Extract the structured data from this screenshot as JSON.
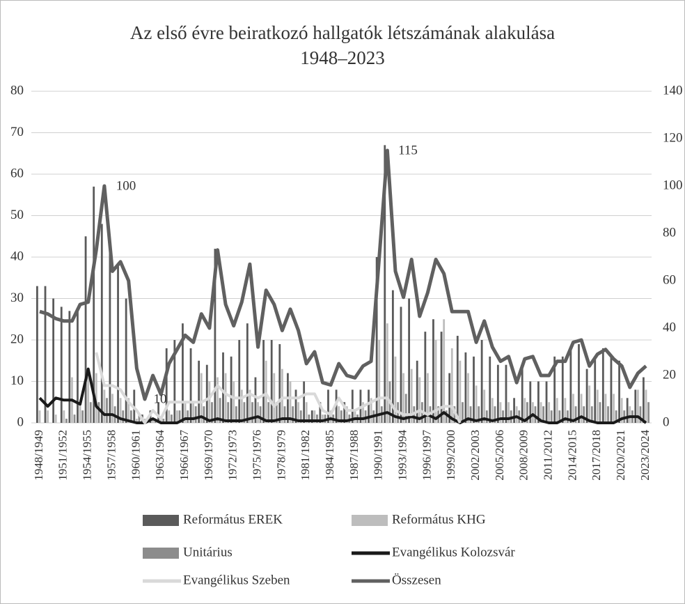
{
  "chart_data": {
    "type": "bar-line",
    "title": [
      "Az első évre beiratkozó hallgatók létszámának alakulása",
      "1948–2023"
    ],
    "categories": [
      "1948/1949",
      null,
      null,
      "1951/1952",
      null,
      null,
      "1954/1955",
      null,
      null,
      "1957/1958",
      null,
      null,
      "1960/1961",
      null,
      null,
      "1963/1964",
      null,
      null,
      "1966/1967",
      null,
      null,
      "1969/1970",
      null,
      null,
      "1972/1973",
      null,
      null,
      "1975/1976",
      null,
      null,
      "1978/1979",
      null,
      null,
      "1981/1982",
      null,
      null,
      "1984/1985",
      null,
      null,
      "1987/1988",
      null,
      null,
      "1990/1991",
      null,
      null,
      "1993/1994",
      null,
      null,
      "1996/1997",
      null,
      null,
      "1999/2000",
      null,
      null,
      "2002/2003",
      null,
      null,
      "2005/2006",
      null,
      null,
      "2008/2009",
      null,
      null,
      "2011/2012",
      null,
      null,
      "2014/2015",
      null,
      null,
      "2017/2018",
      null,
      null,
      "2020/2021",
      null,
      null,
      "2023/2024"
    ],
    "series": [
      {
        "name": "Református EREK",
        "kind": "bar",
        "color": "#5a5a5a",
        "values": [
          33,
          33,
          30,
          28,
          27,
          27,
          45,
          57,
          48,
          42,
          38,
          30,
          8,
          2,
          3,
          5,
          18,
          20,
          24,
          18,
          15,
          14,
          42,
          17,
          16,
          20,
          24,
          11,
          20,
          20,
          19,
          12,
          8,
          10,
          3,
          5,
          8,
          8,
          5,
          8,
          8,
          8,
          40,
          67,
          32,
          28,
          30,
          15,
          22,
          25,
          22,
          12,
          21,
          17,
          16,
          20,
          16,
          14,
          14,
          6,
          14,
          10,
          10,
          10,
          16,
          16,
          18,
          19,
          13,
          16,
          18,
          16,
          15,
          6,
          8,
          11
        ]
      },
      {
        "name": "Református KHG",
        "kind": "bar",
        "color": "#bdbdbd",
        "values": [
          3,
          3,
          2,
          3,
          11,
          5,
          12,
          12,
          8,
          7,
          6,
          6,
          1,
          1,
          1,
          1,
          3,
          3,
          5,
          5,
          12,
          10,
          11,
          12,
          10,
          8,
          8,
          5,
          15,
          12,
          13,
          10,
          5,
          5,
          3,
          2,
          3,
          4,
          4,
          3,
          5,
          6,
          20,
          24,
          16,
          12,
          13,
          11,
          12,
          20,
          25,
          18,
          15,
          12,
          9,
          8,
          6,
          5,
          5,
          4,
          6,
          5,
          5,
          5,
          6,
          6,
          7,
          7,
          9,
          8,
          7,
          7,
          6,
          4,
          8,
          8
        ]
      },
      {
        "name": "Unitárius",
        "kind": "bar",
        "color": "#8c8c8c",
        "values": [
          0,
          0,
          0,
          1,
          2,
          3,
          5,
          5,
          6,
          4,
          3,
          3,
          2,
          1,
          1,
          1,
          2,
          3,
          3,
          4,
          4,
          5,
          6,
          5,
          4,
          5,
          5,
          4,
          5,
          5,
          4,
          4,
          3,
          2,
          2,
          2,
          2,
          3,
          2,
          2,
          3,
          3,
          4,
          10,
          5,
          7,
          4,
          5,
          4,
          4,
          3,
          4,
          5,
          4,
          4,
          3,
          4,
          3,
          3,
          3,
          5,
          4,
          4,
          3,
          3,
          3,
          4,
          4,
          4,
          5,
          4,
          3,
          3,
          3,
          4,
          5
        ]
      },
      {
        "name": "Evangélikus Kolozsvár",
        "kind": "line",
        "color": "#1a1a1a",
        "values": [
          6,
          4,
          6,
          5.5,
          5.5,
          4.5,
          13,
          4,
          2,
          2,
          1,
          0.5,
          0,
          0,
          1,
          0,
          0,
          0,
          1,
          1,
          1.5,
          0.5,
          1,
          0.5,
          0.5,
          0.5,
          1,
          1.5,
          0.5,
          0.5,
          1,
          1,
          0.5,
          0.5,
          0.5,
          0.5,
          1,
          0.5,
          0.5,
          1,
          1,
          1.5,
          2,
          2.5,
          1.5,
          1,
          1.5,
          1,
          2,
          1,
          2.5,
          1,
          0,
          1,
          0.5,
          1,
          0.5,
          1,
          1,
          1.5,
          0.5,
          2,
          0.5,
          0,
          0,
          1,
          0.5,
          1.5,
          0.5,
          0,
          0,
          0,
          1,
          1.5,
          1.5,
          0
        ]
      },
      {
        "name": "Evangélikus Szeben",
        "kind": "line",
        "color": "#d9d9d9",
        "values": [
          null,
          null,
          null,
          null,
          null,
          null,
          null,
          17,
          9,
          9,
          8,
          5,
          3,
          0,
          3,
          1,
          5,
          5,
          5,
          5,
          5,
          6,
          9,
          7,
          6,
          6,
          7,
          6,
          7,
          4,
          6,
          6,
          6,
          7,
          7,
          3,
          2,
          6,
          3,
          3,
          4,
          5,
          6,
          6,
          3,
          2,
          2,
          3,
          2,
          3,
          4,
          4,
          0,
          null,
          null,
          null,
          null,
          null,
          null,
          null,
          null,
          null,
          null,
          null,
          null,
          null,
          null,
          null,
          null,
          null,
          null,
          null,
          null,
          null,
          null,
          null
        ]
      },
      {
        "name": "Összesen",
        "kind": "line",
        "axis": "y2",
        "color": "#606060",
        "values": [
          47,
          46,
          44,
          43,
          43,
          50,
          51,
          73,
          100,
          64,
          68,
          60,
          23,
          10,
          20,
          12,
          25,
          31,
          37,
          34,
          46,
          40,
          73,
          50,
          41,
          51,
          67,
          32,
          56,
          50,
          39,
          48,
          39,
          25,
          30,
          17,
          16,
          25,
          20,
          19,
          24,
          26,
          70,
          115,
          64,
          53,
          69,
          45,
          55,
          69,
          63,
          47,
          47,
          47,
          34,
          43,
          32,
          26,
          28,
          17,
          27,
          28,
          20,
          20,
          26,
          26,
          34,
          35,
          24,
          29,
          31,
          27,
          24,
          15,
          21,
          24
        ]
      }
    ],
    "annotations": [
      "100",
      "115",
      "10"
    ],
    "ylim": [
      0,
      80
    ],
    "yticks": [
      0,
      10,
      20,
      30,
      40,
      50,
      60,
      70,
      80
    ],
    "y2lim": [
      0,
      140
    ],
    "y2ticks": [
      0,
      20,
      40,
      60,
      80,
      100,
      120,
      140
    ],
    "grid": true,
    "legend": "bottom"
  }
}
